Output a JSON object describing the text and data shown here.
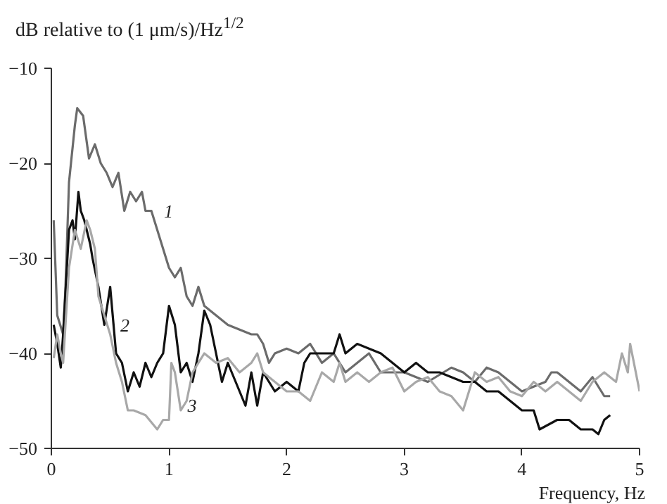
{
  "chart_data": {
    "type": "line",
    "ylabel": "dB relative to (1 μm/s)/Hz$^{1/2}$",
    "xlabel": "Frequency, Hz",
    "xlim": [
      0,
      5
    ],
    "xticks": [
      0,
      1,
      2,
      3,
      4,
      5
    ],
    "ylim": [
      -50,
      -10
    ],
    "yticks": [
      -10,
      -20,
      -30,
      -40,
      -50
    ],
    "grid": false,
    "marker": "none",
    "line_style": "solid",
    "series": [
      {
        "color": "#6b6b6b",
        "x": [
          0.02,
          0.05,
          0.1,
          0.12,
          0.15,
          0.2,
          0.22,
          0.27,
          0.32,
          0.37,
          0.42,
          0.47,
          0.52,
          0.57,
          0.62,
          0.67,
          0.72,
          0.77,
          0.8,
          0.85,
          0.9,
          0.95,
          1.0,
          1.05,
          1.1,
          1.15,
          1.2,
          1.25,
          1.3,
          1.4,
          1.5,
          1.6,
          1.7,
          1.75,
          1.8,
          1.85,
          1.9,
          2.0,
          2.1,
          2.2,
          2.3,
          2.4,
          2.5,
          2.6,
          2.7,
          2.8,
          2.9,
          3.0,
          3.2,
          3.4,
          3.5,
          3.6,
          3.7,
          3.8,
          3.9,
          4.0,
          4.1,
          4.2,
          4.25,
          4.3,
          4.4,
          4.5,
          4.6,
          4.7,
          4.75
        ],
        "values": [
          -26,
          -36,
          -38,
          -33,
          -22,
          -16,
          -14.2,
          -15,
          -19.5,
          -18,
          -20,
          -21,
          -22.5,
          -21,
          -25,
          -23,
          -24,
          -23,
          -25,
          -25,
          -27,
          -29,
          -31,
          -32,
          -31,
          -34,
          -35,
          -33,
          -35,
          -36,
          -37,
          -37.5,
          -38,
          -38,
          -39,
          -41,
          -40,
          -39.5,
          -40,
          -39,
          -41,
          -40,
          -42,
          -41,
          -40,
          -42,
          -42,
          -42,
          -43,
          -41.5,
          -42,
          -43,
          -41.5,
          -42,
          -43,
          -44,
          -43.5,
          -43,
          -42,
          -42,
          -43,
          -44,
          -42.5,
          -44.5,
          -44.5
        ]
      },
      {
        "color": "#111111",
        "x": [
          0.02,
          0.05,
          0.08,
          0.1,
          0.15,
          0.18,
          0.2,
          0.23,
          0.25,
          0.28,
          0.3,
          0.33,
          0.35,
          0.4,
          0.45,
          0.5,
          0.55,
          0.6,
          0.65,
          0.7,
          0.75,
          0.8,
          0.85,
          0.9,
          0.95,
          1.0,
          1.05,
          1.1,
          1.15,
          1.2,
          1.25,
          1.3,
          1.35,
          1.4,
          1.45,
          1.5,
          1.6,
          1.65,
          1.7,
          1.75,
          1.8,
          1.9,
          2.0,
          2.1,
          2.15,
          2.2,
          2.3,
          2.4,
          2.45,
          2.5,
          2.6,
          2.7,
          2.8,
          2.9,
          3.0,
          3.1,
          3.2,
          3.3,
          3.5,
          3.6,
          3.7,
          3.8,
          3.9,
          4.0,
          4.1,
          4.15,
          4.3,
          4.4,
          4.5,
          4.6,
          4.65,
          4.7,
          4.75
        ],
        "values": [
          -37,
          -39,
          -41.5,
          -38,
          -27,
          -26,
          -28,
          -23,
          -25,
          -26,
          -27,
          -28.5,
          -30,
          -33,
          -37,
          -33,
          -40,
          -41,
          -44,
          -42,
          -43.5,
          -41,
          -42.5,
          -41,
          -40,
          -35,
          -37,
          -42,
          -41,
          -43,
          -40,
          -35.5,
          -37,
          -40,
          -43,
          -41,
          -44,
          -45.5,
          -42,
          -45.5,
          -42,
          -44,
          -43,
          -44,
          -41,
          -40,
          -40,
          -40,
          -38,
          -40,
          -39,
          -39.5,
          -40,
          -41,
          -42,
          -41,
          -42,
          -42,
          -43,
          -43,
          -44,
          -44,
          -45,
          -46,
          -46,
          -48,
          -47,
          -47,
          -48,
          -48,
          -48.5,
          -47,
          -46.5
        ]
      },
      {
        "color": "#a8a8a8",
        "x": [
          0.02,
          0.05,
          0.08,
          0.1,
          0.15,
          0.2,
          0.25,
          0.3,
          0.33,
          0.37,
          0.4,
          0.45,
          0.5,
          0.55,
          0.6,
          0.65,
          0.7,
          0.8,
          0.9,
          0.95,
          1.0,
          1.02,
          1.05,
          1.1,
          1.15,
          1.2,
          1.3,
          1.4,
          1.5,
          1.6,
          1.7,
          1.75,
          1.8,
          1.9,
          2.0,
          2.1,
          2.2,
          2.3,
          2.4,
          2.45,
          2.5,
          2.6,
          2.7,
          2.8,
          2.9,
          3.0,
          3.1,
          3.2,
          3.3,
          3.4,
          3.5,
          3.6,
          3.7,
          3.8,
          3.9,
          4.0,
          4.1,
          4.2,
          4.3,
          4.4,
          4.5,
          4.6,
          4.7,
          4.8,
          4.85,
          4.9,
          4.92,
          5.0
        ],
        "values": [
          -40.5,
          -38,
          -40,
          -41,
          -31,
          -27,
          -29,
          -26,
          -27,
          -29,
          -34,
          -36,
          -38,
          -41,
          -43,
          -46,
          -46,
          -46.5,
          -48,
          -47,
          -47,
          -41,
          -42,
          -46,
          -45,
          -42,
          -40,
          -41,
          -40.5,
          -42,
          -41,
          -40,
          -42,
          -43,
          -44,
          -44,
          -45,
          -42,
          -43,
          -41,
          -43,
          -42,
          -43,
          -42,
          -41.5,
          -44,
          -43,
          -42.5,
          -44,
          -44.5,
          -46,
          -42,
          -43,
          -42.5,
          -44,
          -44.5,
          -43,
          -44,
          -43,
          -44,
          -45,
          -43,
          -42,
          -43,
          -40,
          -42,
          -39,
          -44
        ]
      }
    ],
    "annotations": [
      {
        "text": "1",
        "x": 0.9,
        "y": -25
      },
      {
        "text": "2",
        "x": 0.53,
        "y": -37
      },
      {
        "text": "3",
        "x": 1.1,
        "y": -45.5
      }
    ]
  }
}
